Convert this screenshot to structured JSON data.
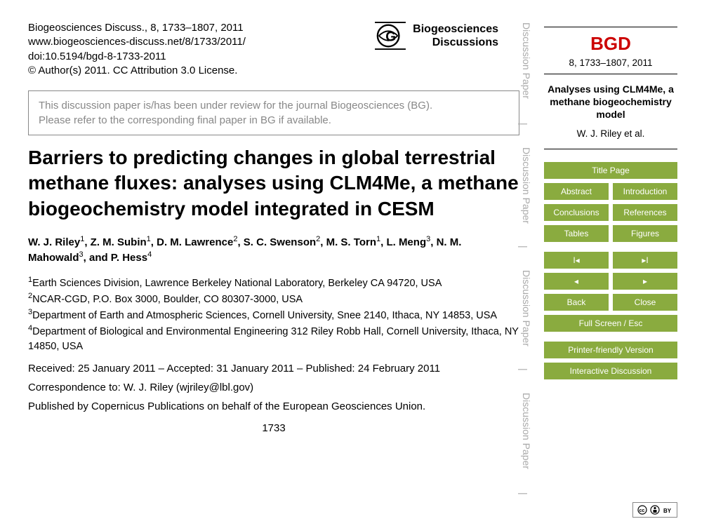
{
  "citation": {
    "line1": "Biogeosciences Discuss., 8, 1733–1807, 2011",
    "line2": "www.biogeosciences-discuss.net/8/1733/2011/",
    "line3": "doi:10.5194/bgd-8-1733-2011",
    "line4": "© Author(s) 2011. CC Attribution 3.0 License."
  },
  "journal": {
    "name_line1": "Biogeosciences",
    "name_line2": "Discussions"
  },
  "review_notice": {
    "line1": "This discussion paper is/has been under review for the journal Biogeosciences (BG).",
    "line2": "Please refer to the corresponding final paper in BG if available."
  },
  "title": "Barriers to predicting changes in global terrestrial methane fluxes: analyses using CLM4Me, a methane biogeochemistry model integrated in CESM",
  "authors_html": "W. J. Riley<sup>1</sup>, Z. M. Subin<sup>1</sup>, D. M. Lawrence<sup>2</sup>, S. C. Swenson<sup>2</sup>, M. S. Torn<sup>1</sup>, L. Meng<sup>3</sup>, N. M. Mahowald<sup>3</sup>, and P. Hess<sup>4</sup>",
  "affiliations": [
    {
      "sup": "1",
      "text": "Earth Sciences Division, Lawrence Berkeley National Laboratory, Berkeley CA 94720, USA"
    },
    {
      "sup": "2",
      "text": "NCAR-CGD, P.O. Box 3000, Boulder, CO 80307-3000, USA"
    },
    {
      "sup": "3",
      "text": "Department of Earth and Atmospheric Sciences, Cornell University, Snee 2140, Ithaca, NY 14853, USA"
    },
    {
      "sup": "4",
      "text": "Department of Biological and Environmental Engineering 312 Riley Robb Hall, Cornell University, Ithaca, NY 14850, USA"
    }
  ],
  "dates": "Received: 25 January 2011 – Accepted: 31 January 2011 – Published: 24 February 2011",
  "correspondence": "Correspondence to: W. J. Riley (wjriley@lbl.gov)",
  "published_by": "Published by Copernicus Publications on behalf of the European Geosciences Union.",
  "page_number": "1733",
  "side_label": "Discussion Paper",
  "sidebar": {
    "bgd": "BGD",
    "issue": "8, 1733–1807, 2011",
    "short_title": "Analyses using CLM4Me, a methane biogeochemistry model",
    "short_authors": "W. J. Riley et al.",
    "nav": {
      "title_page": "Title Page",
      "abstract": "Abstract",
      "introduction": "Introduction",
      "conclusions": "Conclusions",
      "references": "References",
      "tables": "Tables",
      "figures": "Figures",
      "first": "◂I",
      "last": "▸I",
      "prev": "◂",
      "next": "▸",
      "back": "Back",
      "close": "Close",
      "fullscreen": "Full Screen / Esc",
      "printer": "Printer-friendly Version",
      "interactive": "Interactive Discussion"
    }
  },
  "cc_label": "cc ⓘ",
  "colors": {
    "accent": "#8aab3f",
    "bgd_red": "#cc0000",
    "gray_text": "#888888"
  }
}
